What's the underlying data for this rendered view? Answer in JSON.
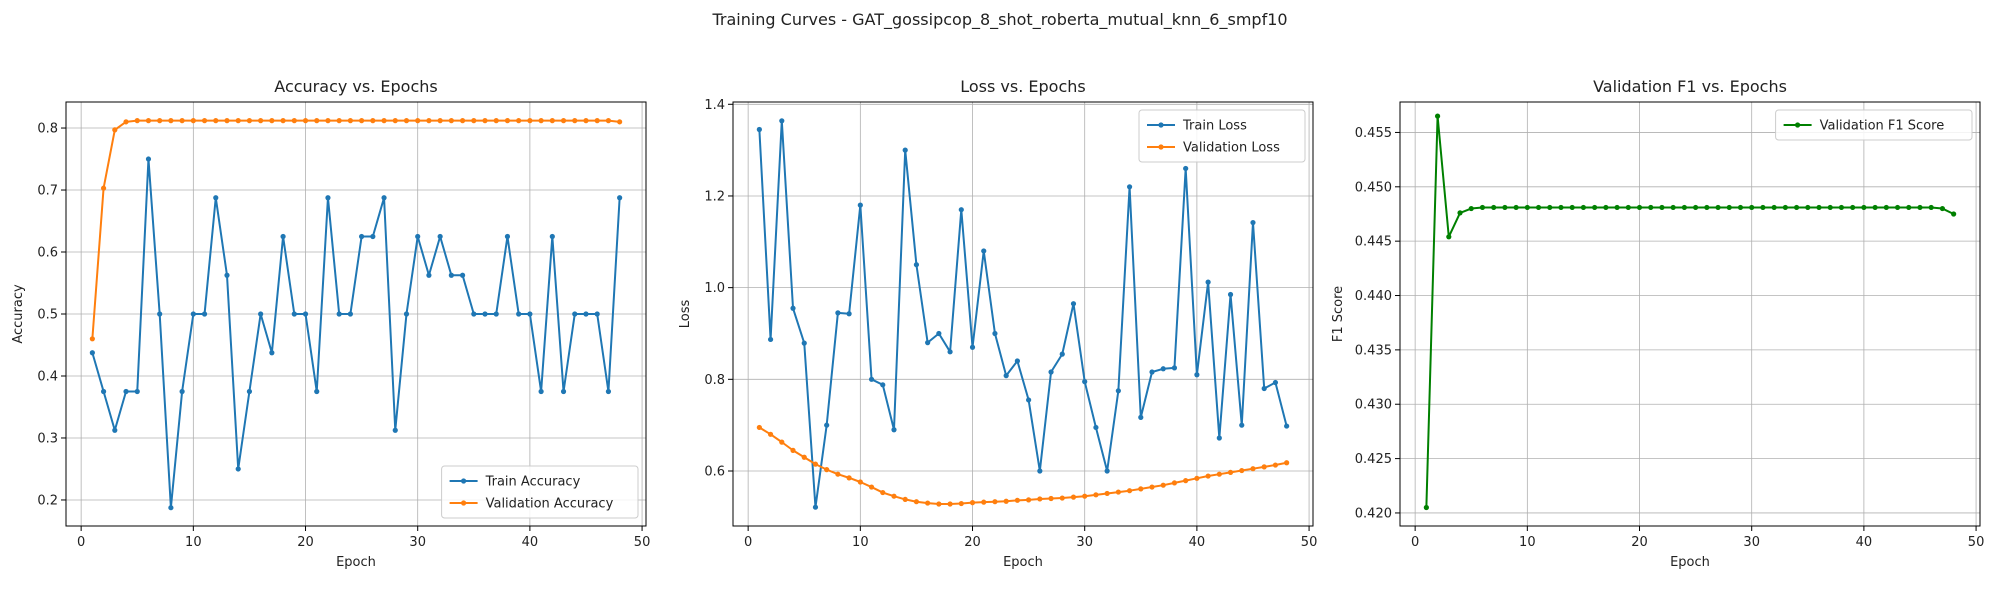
{
  "figure": {
    "title": "Training Curves - GAT_gossipcop_8_shot_roberta_mutual_knn_6_smpf10"
  },
  "colors": {
    "blue": "#1f77b4",
    "orange": "#ff7f0e",
    "green": "#008000",
    "grid": "#b0b0b0",
    "axis": "#000000"
  },
  "chart_data": [
    {
      "type": "line",
      "title": "Accuracy vs. Epochs",
      "xlabel": "Epoch",
      "ylabel": "Accuracy",
      "xlim": [
        -1.35,
        50.35
      ],
      "ylim": [
        0.158,
        0.842
      ],
      "xticks": [
        0,
        10,
        20,
        30,
        40,
        50
      ],
      "yticks": [
        0.2,
        0.3,
        0.4,
        0.5,
        0.6,
        0.7,
        0.8
      ],
      "grid": true,
      "legend": "lower-right",
      "x": [
        1,
        2,
        3,
        4,
        5,
        6,
        7,
        8,
        9,
        10,
        11,
        12,
        13,
        14,
        15,
        16,
        17,
        18,
        19,
        20,
        21,
        22,
        23,
        24,
        25,
        26,
        27,
        28,
        29,
        30,
        31,
        32,
        33,
        34,
        35,
        36,
        37,
        38,
        39,
        40,
        41,
        42,
        43,
        44,
        45,
        46,
        47,
        48
      ],
      "series": [
        {
          "name": "Train Accuracy",
          "color": "#1f77b4",
          "values": [
            0.4375,
            0.375,
            0.3125,
            0.375,
            0.375,
            0.75,
            0.5,
            0.1875,
            0.375,
            0.5,
            0.5,
            0.6875,
            0.5625,
            0.25,
            0.375,
            0.5,
            0.4375,
            0.625,
            0.5,
            0.5,
            0.375,
            0.6875,
            0.5,
            0.5,
            0.625,
            0.625,
            0.6875,
            0.3125,
            0.5,
            0.625,
            0.5625,
            0.625,
            0.5625,
            0.5625,
            0.5,
            0.5,
            0.5,
            0.625,
            0.5,
            0.5,
            0.375,
            0.625,
            0.375,
            0.5,
            0.5,
            0.5,
            0.375,
            0.6875
          ]
        },
        {
          "name": "Validation Accuracy",
          "color": "#ff7f0e",
          "values": [
            0.46,
            0.703,
            0.797,
            0.81,
            0.812,
            0.812,
            0.812,
            0.812,
            0.812,
            0.812,
            0.812,
            0.812,
            0.812,
            0.812,
            0.812,
            0.812,
            0.812,
            0.812,
            0.812,
            0.812,
            0.812,
            0.812,
            0.812,
            0.812,
            0.812,
            0.812,
            0.812,
            0.812,
            0.812,
            0.812,
            0.812,
            0.812,
            0.812,
            0.812,
            0.812,
            0.812,
            0.812,
            0.812,
            0.812,
            0.812,
            0.812,
            0.812,
            0.812,
            0.812,
            0.812,
            0.812,
            0.812,
            0.81
          ]
        }
      ]
    },
    {
      "type": "line",
      "title": "Loss vs. Epochs",
      "xlabel": "Epoch",
      "ylabel": "Loss",
      "xlim": [
        -1.35,
        50.35
      ],
      "ylim": [
        0.48,
        1.405
      ],
      "xticks": [
        0,
        10,
        20,
        30,
        40,
        50
      ],
      "yticks": [
        0.6,
        0.8,
        1.0,
        1.2,
        1.4
      ],
      "grid": true,
      "legend": "upper-right",
      "x": [
        1,
        2,
        3,
        4,
        5,
        6,
        7,
        8,
        9,
        10,
        11,
        12,
        13,
        14,
        15,
        16,
        17,
        18,
        19,
        20,
        21,
        22,
        23,
        24,
        25,
        26,
        27,
        28,
        29,
        30,
        31,
        32,
        33,
        34,
        35,
        36,
        37,
        38,
        39,
        40,
        41,
        42,
        43,
        44,
        45,
        46,
        47,
        48
      ],
      "series": [
        {
          "name": "Train Loss",
          "color": "#1f77b4",
          "values": [
            1.345,
            0.887,
            1.364,
            0.955,
            0.879,
            0.521,
            0.7,
            0.945,
            0.943,
            1.18,
            0.8,
            0.788,
            0.69,
            1.3,
            1.05,
            0.88,
            0.9,
            0.86,
            1.17,
            0.87,
            1.08,
            0.9,
            0.808,
            0.84,
            0.755,
            0.6,
            0.816,
            0.855,
            0.965,
            0.795,
            0.695,
            0.6,
            0.775,
            1.22,
            0.717,
            0.816,
            0.823,
            0.825,
            1.26,
            0.81,
            1.012,
            0.672,
            0.985,
            0.7,
            1.142,
            0.78,
            0.793,
            0.698
          ]
        },
        {
          "name": "Validation Loss",
          "color": "#ff7f0e",
          "values": [
            0.695,
            0.68,
            0.663,
            0.645,
            0.63,
            0.615,
            0.603,
            0.593,
            0.585,
            0.576,
            0.565,
            0.553,
            0.545,
            0.538,
            0.533,
            0.53,
            0.528,
            0.528,
            0.529,
            0.531,
            0.532,
            0.533,
            0.534,
            0.536,
            0.537,
            0.539,
            0.54,
            0.541,
            0.543,
            0.545,
            0.548,
            0.551,
            0.554,
            0.557,
            0.561,
            0.565,
            0.569,
            0.574,
            0.579,
            0.584,
            0.589,
            0.593,
            0.597,
            0.601,
            0.605,
            0.609,
            0.613,
            0.618
          ]
        }
      ]
    },
    {
      "type": "line",
      "title": "Validation F1 vs. Epochs",
      "xlabel": "Epoch",
      "ylabel": "F1 Score",
      "xlim": [
        -1.35,
        50.35
      ],
      "ylim": [
        0.4188,
        0.4578
      ],
      "xticks": [
        0,
        10,
        20,
        30,
        40,
        50
      ],
      "yticks": [
        0.42,
        0.425,
        0.43,
        0.435,
        0.44,
        0.445,
        0.45,
        0.455
      ],
      "grid": true,
      "legend": "upper-right",
      "x": [
        1,
        2,
        3,
        4,
        5,
        6,
        7,
        8,
        9,
        10,
        11,
        12,
        13,
        14,
        15,
        16,
        17,
        18,
        19,
        20,
        21,
        22,
        23,
        24,
        25,
        26,
        27,
        28,
        29,
        30,
        31,
        32,
        33,
        34,
        35,
        36,
        37,
        38,
        39,
        40,
        41,
        42,
        43,
        44,
        45,
        46,
        47,
        48
      ],
      "series": [
        {
          "name": "Validation F1 Score",
          "color": "#008000",
          "values": [
            0.4205,
            0.4565,
            0.4454,
            0.4476,
            0.448,
            0.4481,
            0.4481,
            0.4481,
            0.4481,
            0.4481,
            0.4481,
            0.4481,
            0.4481,
            0.4481,
            0.4481,
            0.4481,
            0.4481,
            0.4481,
            0.4481,
            0.4481,
            0.4481,
            0.4481,
            0.4481,
            0.4481,
            0.4481,
            0.4481,
            0.4481,
            0.4481,
            0.4481,
            0.4481,
            0.4481,
            0.4481,
            0.4481,
            0.4481,
            0.4481,
            0.4481,
            0.4481,
            0.4481,
            0.4481,
            0.4481,
            0.4481,
            0.4481,
            0.4481,
            0.4481,
            0.4481,
            0.4481,
            0.448,
            0.4475
          ]
        }
      ]
    }
  ]
}
